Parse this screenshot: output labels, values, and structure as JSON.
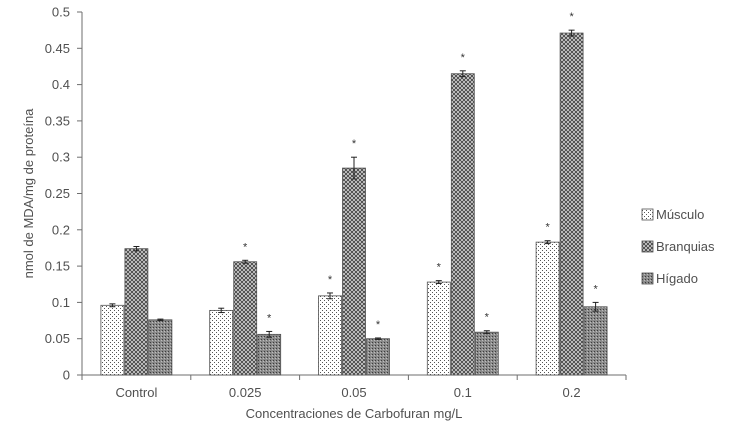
{
  "chart_data": {
    "type": "bar",
    "xlabel": "Concentraciones de Carbofuran mg/L",
    "ylabel": "nmol de MDA/mg de proteína",
    "ylim": [
      0,
      0.5
    ],
    "yticks": [
      "0",
      "0.05",
      "0.1",
      "0.15",
      "0.2",
      "0.25",
      "0.3",
      "0.35",
      "0.4",
      "0.45",
      "0.5"
    ],
    "categories": [
      "Control",
      "0.025",
      "0.05",
      "0.1",
      "0.2"
    ],
    "legend_position": "right",
    "series": [
      {
        "name": "Músculo",
        "pattern": "dots",
        "values": [
          0.096,
          0.089,
          0.109,
          0.128,
          0.183
        ],
        "errors": [
          0.002,
          0.003,
          0.004,
          0.002,
          0.002
        ],
        "significance": [
          "",
          "",
          "*",
          "*",
          "*"
        ]
      },
      {
        "name": "Branquias",
        "pattern": "crosshatch",
        "values": [
          0.174,
          0.156,
          0.285,
          0.415,
          0.471
        ],
        "errors": [
          0.003,
          0.002,
          0.015,
          0.004,
          0.004
        ],
        "significance": [
          "",
          "*",
          "*",
          "*",
          "*"
        ]
      },
      {
        "name": "Hígado",
        "pattern": "dense",
        "values": [
          0.076,
          0.056,
          0.05,
          0.059,
          0.094
        ],
        "errors": [
          0.001,
          0.004,
          0.001,
          0.002,
          0.006
        ],
        "significance": [
          "",
          "*",
          "*",
          "*",
          "*"
        ]
      }
    ]
  }
}
